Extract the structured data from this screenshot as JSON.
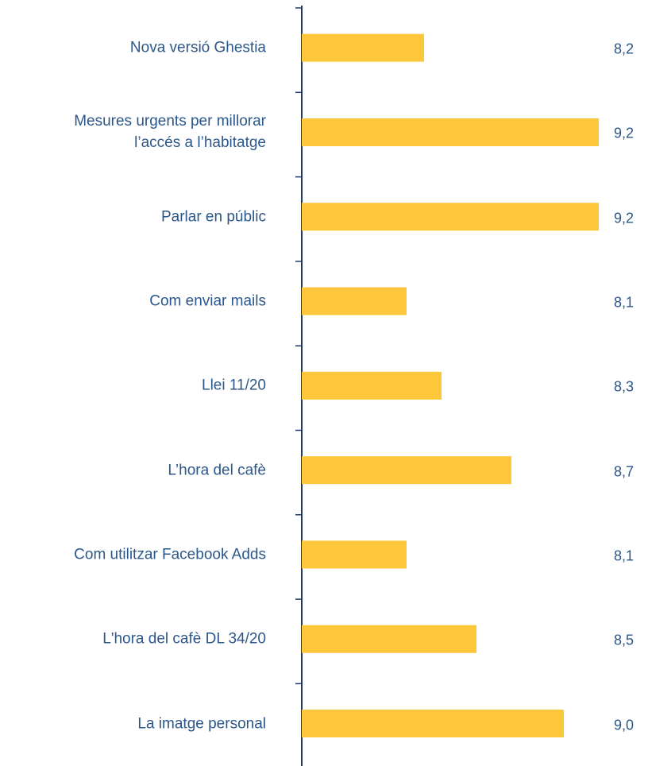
{
  "chart_data": {
    "type": "bar",
    "orientation": "horizontal",
    "categories": [
      "Nova versió Ghestia",
      "Mesures urgents per millorar\nl’accés a l’habitatge",
      "Parlar en públic",
      "Com enviar mails",
      "Llei 11/20",
      "L’hora del cafè ",
      "Com utilitzar Facebook Adds",
      "L'hora del cafè DL 34/20",
      "La imatge personal"
    ],
    "values": [
      8.2,
      9.2,
      9.2,
      8.1,
      8.3,
      8.7,
      8.1,
      8.5,
      9.0
    ],
    "value_labels": [
      "8,2",
      "9,2",
      "9,2",
      "8,1",
      "8,3",
      "8,7",
      "8,1",
      "8,5",
      "9,0"
    ],
    "color": "#fcc73b",
    "xlim": [
      7.5,
      9.3
    ]
  }
}
